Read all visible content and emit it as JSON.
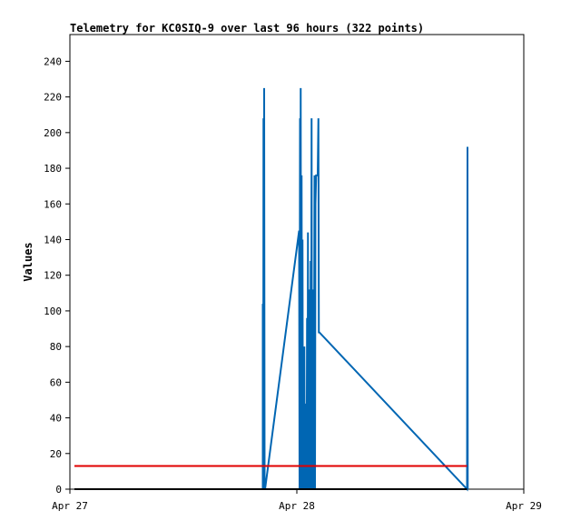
{
  "chart_data": {
    "type": "line",
    "title": "Telemetry for KC0SIQ-9 over last 96 hours (322 points)",
    "xlabel": "",
    "ylabel": "Values",
    "ylim": [
      0,
      255
    ],
    "xlim": [
      0,
      2
    ],
    "x_ticks": [
      {
        "value": 0,
        "label": "Apr 27"
      },
      {
        "value": 1,
        "label": "Apr 28"
      },
      {
        "value": 2,
        "label": "Apr 29"
      }
    ],
    "y_ticks": [
      0,
      20,
      40,
      60,
      80,
      100,
      120,
      140,
      160,
      180,
      200,
      220,
      240
    ],
    "grid": false,
    "legend": "none",
    "x_units": "days since Apr 27 00:00",
    "series": [
      {
        "color": "#0066b3",
        "points": [
          [
            0.85,
            0
          ],
          [
            0.85,
            104
          ],
          [
            0.852,
            0
          ],
          [
            0.853,
            208
          ],
          [
            0.854,
            0
          ],
          [
            0.856,
            225
          ],
          [
            0.858,
            0
          ],
          [
            0.86,
            0
          ],
          [
            1.01,
            145
          ],
          [
            1.012,
            0
          ],
          [
            1.014,
            208
          ],
          [
            1.015,
            0
          ],
          [
            1.017,
            225
          ],
          [
            1.019,
            0
          ],
          [
            1.021,
            176
          ],
          [
            1.023,
            0
          ],
          [
            1.025,
            140
          ],
          [
            1.027,
            0
          ],
          [
            1.029,
            64
          ],
          [
            1.031,
            0
          ],
          [
            1.033,
            80
          ],
          [
            1.035,
            0
          ],
          [
            1.037,
            16
          ],
          [
            1.039,
            0
          ],
          [
            1.041,
            48
          ],
          [
            1.043,
            0
          ],
          [
            1.045,
            96
          ],
          [
            1.047,
            0
          ],
          [
            1.049,
            144
          ],
          [
            1.051,
            0
          ],
          [
            1.053,
            64
          ],
          [
            1.055,
            0
          ],
          [
            1.057,
            112
          ],
          [
            1.059,
            0
          ],
          [
            1.061,
            128
          ],
          [
            1.063,
            0
          ],
          [
            1.065,
            208
          ],
          [
            1.067,
            0
          ],
          [
            1.069,
            112
          ],
          [
            1.071,
            0
          ],
          [
            1.073,
            96
          ],
          [
            1.075,
            0
          ],
          [
            1.078,
            176
          ],
          [
            1.08,
            0
          ],
          [
            1.082,
            160
          ],
          [
            1.085,
            176
          ],
          [
            1.09,
            176
          ],
          [
            1.092,
            176
          ],
          [
            1.095,
            208
          ],
          [
            1.097,
            88
          ],
          [
            1.099,
            88
          ],
          [
            1.75,
            0
          ],
          [
            1.752,
            192
          ],
          [
            1.753,
            0
          ]
        ]
      },
      {
        "color": "#e00000",
        "points": [
          [
            0.02,
            13
          ],
          [
            1.75,
            13
          ]
        ]
      },
      {
        "color": "#000000",
        "points": [
          [
            0.02,
            0
          ],
          [
            1.75,
            0
          ]
        ]
      }
    ]
  }
}
